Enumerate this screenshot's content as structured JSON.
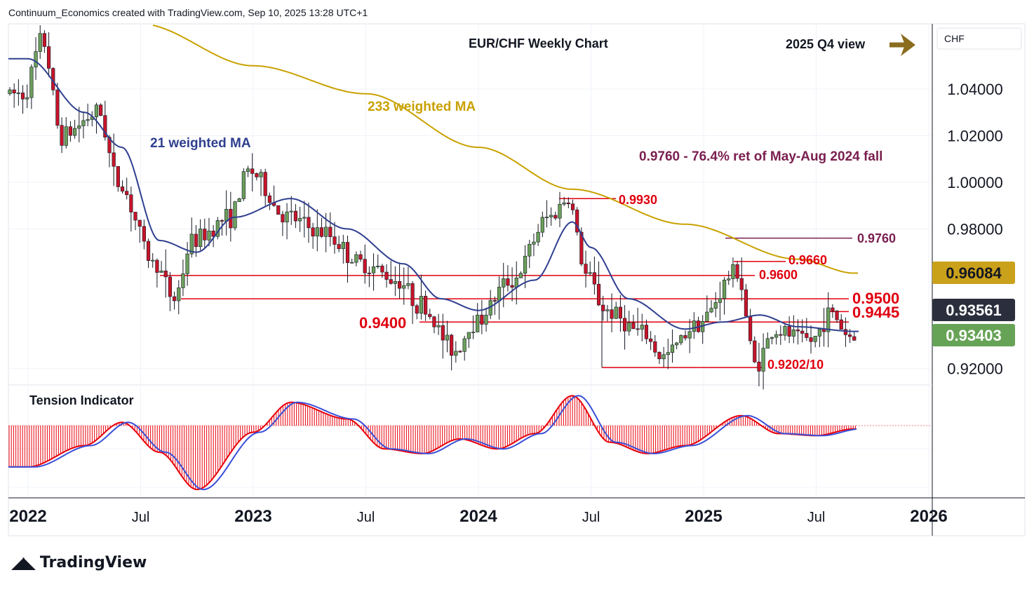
{
  "header": {
    "credit": "Continuum_Economics created with TradingView.com, Sep 10, 2025 13:28 UTC+1"
  },
  "brand": {
    "logo": "17",
    "name": "TradingView",
    "icon": "tradingview-logo"
  },
  "price_axis": {
    "currency": "CHF",
    "ticks": [
      "1.04000",
      "1.02000",
      "1.00000",
      "0.98000",
      "0.92000"
    ]
  },
  "colors": {
    "up": "#6b9f5a",
    "down": "#c8142a",
    "ma21": "#2f3f8f",
    "ma233": "#c9a100",
    "level": "#e0000f",
    "fib": "#7a1f4f",
    "arrow": "#8a6d1e",
    "tension_fill": "#e8000b",
    "tension_line": "#3a4fd8",
    "badge_dark": "#2b2f3d",
    "badge_green": "#67a356",
    "badge_gold": "#caa11a"
  },
  "chart_data": [
    {
      "type": "candlestick",
      "title": "EUR/CHF Weekly Chart",
      "subtitle": "2025 Q4 view",
      "x_ticks": [
        "2022",
        "Jul",
        "2023",
        "Jul",
        "2024",
        "Jul",
        "2025",
        "Jul",
        "2026"
      ],
      "ylim": [
        0.913,
        1.068
      ],
      "yticks": [
        1.04,
        1.02,
        1.0,
        0.98,
        0.92
      ],
      "current_price_labels": [
        {
          "value": "0.96084",
          "style": "gold"
        },
        {
          "value": "0.93561",
          "style": "dark"
        },
        {
          "value": "0.93403",
          "style": "green"
        }
      ],
      "annotations": [
        {
          "text": "233 weighted MA",
          "series": "ma233"
        },
        {
          "text": "21 weighted MA",
          "series": "ma21"
        },
        {
          "text": "0.9760 - 76.4% ret of May-Aug 2024 fall"
        }
      ],
      "levels": [
        {
          "label": "0.9930",
          "value": 0.993
        },
        {
          "label": "0.9760",
          "value": 0.976
        },
        {
          "label": "0.9660",
          "value": 0.966
        },
        {
          "label": "0.9600",
          "value": 0.96
        },
        {
          "label": "0.9500",
          "value": 0.95
        },
        {
          "label": "0.9445",
          "value": 0.9445
        },
        {
          "label": "0.9400",
          "value": 0.94
        },
        {
          "label": "0.9202/10",
          "value": 0.9205
        }
      ],
      "ohlc_key_points": [
        [
          "2022-01",
          1.038
        ],
        [
          "2022-02",
          1.061
        ],
        [
          "2022-03",
          1.02
        ],
        [
          "2022-05",
          1.03
        ],
        [
          "2022-06",
          1.0
        ],
        [
          "2022-08",
          0.965
        ],
        [
          "2022-09",
          0.95
        ],
        [
          "2022-10",
          0.975
        ],
        [
          "2022-12",
          0.985
        ],
        [
          "2023-01",
          1.005
        ],
        [
          "2023-03",
          0.985
        ],
        [
          "2023-05",
          0.978
        ],
        [
          "2023-07",
          0.965
        ],
        [
          "2023-09",
          0.958
        ],
        [
          "2023-10",
          0.948
        ],
        [
          "2023-12",
          0.928
        ],
        [
          "2024-01",
          0.94
        ],
        [
          "2024-03",
          0.958
        ],
        [
          "2024-05",
          0.985
        ],
        [
          "2024-06",
          0.993
        ],
        [
          "2024-07",
          0.96
        ],
        [
          "2024-08",
          0.945
        ],
        [
          "2024-10",
          0.935
        ],
        [
          "2024-11",
          0.925
        ],
        [
          "2025-01",
          0.94
        ],
        [
          "2025-03",
          0.962
        ],
        [
          "2025-04",
          0.922
        ],
        [
          "2025-05",
          0.936
        ],
        [
          "2025-07",
          0.932
        ],
        [
          "2025-08",
          0.944
        ],
        [
          "2025-09",
          0.934
        ]
      ],
      "ma21_key_points": [
        [
          "2022-01",
          1.053
        ],
        [
          "2022-04",
          1.03
        ],
        [
          "2022-06",
          1.015
        ],
        [
          "2022-08",
          0.975
        ],
        [
          "2022-10",
          0.97
        ],
        [
          "2022-12",
          0.985
        ],
        [
          "2023-03",
          0.993
        ],
        [
          "2023-06",
          0.98
        ],
        [
          "2023-09",
          0.965
        ],
        [
          "2023-11",
          0.95
        ],
        [
          "2024-01",
          0.945
        ],
        [
          "2024-04",
          0.958
        ],
        [
          "2024-06",
          0.983
        ],
        [
          "2024-07",
          0.972
        ],
        [
          "2024-09",
          0.95
        ],
        [
          "2024-12",
          0.937
        ],
        [
          "2025-02",
          0.94
        ],
        [
          "2025-04",
          0.943
        ],
        [
          "2025-06",
          0.938
        ],
        [
          "2025-09",
          0.936
        ]
      ],
      "ma233_key_points": [
        [
          "2022-07",
          1.068
        ],
        [
          "2023-01",
          1.05
        ],
        [
          "2023-07",
          1.038
        ],
        [
          "2024-01",
          1.015
        ],
        [
          "2024-06",
          0.997
        ],
        [
          "2024-12",
          0.982
        ],
        [
          "2025-06",
          0.967
        ],
        [
          "2025-09",
          0.961
        ]
      ]
    },
    {
      "type": "area",
      "title": "Tension Indicator",
      "ylim": [
        -100,
        100
      ],
      "x_ticks": [
        "2022",
        "Jul",
        "2023",
        "Jul",
        "2024",
        "Jul",
        "2025",
        "Jul",
        "2026"
      ],
      "series": [
        {
          "name": "tension",
          "key_points": [
            [
              "2022-01",
              -62
            ],
            [
              "2022-04",
              -30
            ],
            [
              "2022-06",
              5
            ],
            [
              "2022-08",
              -40
            ],
            [
              "2022-10",
              -96
            ],
            [
              "2023-01",
              -10
            ],
            [
              "2023-03",
              35
            ],
            [
              "2023-06",
              10
            ],
            [
              "2023-08",
              -35
            ],
            [
              "2023-10",
              -42
            ],
            [
              "2023-12",
              -20
            ],
            [
              "2024-02",
              -35
            ],
            [
              "2024-04",
              -12
            ],
            [
              "2024-06",
              45
            ],
            [
              "2024-08",
              -25
            ],
            [
              "2024-10",
              -42
            ],
            [
              "2024-12",
              -30
            ],
            [
              "2025-03",
              15
            ],
            [
              "2025-05",
              -12
            ],
            [
              "2025-07",
              -15
            ],
            [
              "2025-09",
              -5
            ]
          ]
        }
      ]
    }
  ]
}
